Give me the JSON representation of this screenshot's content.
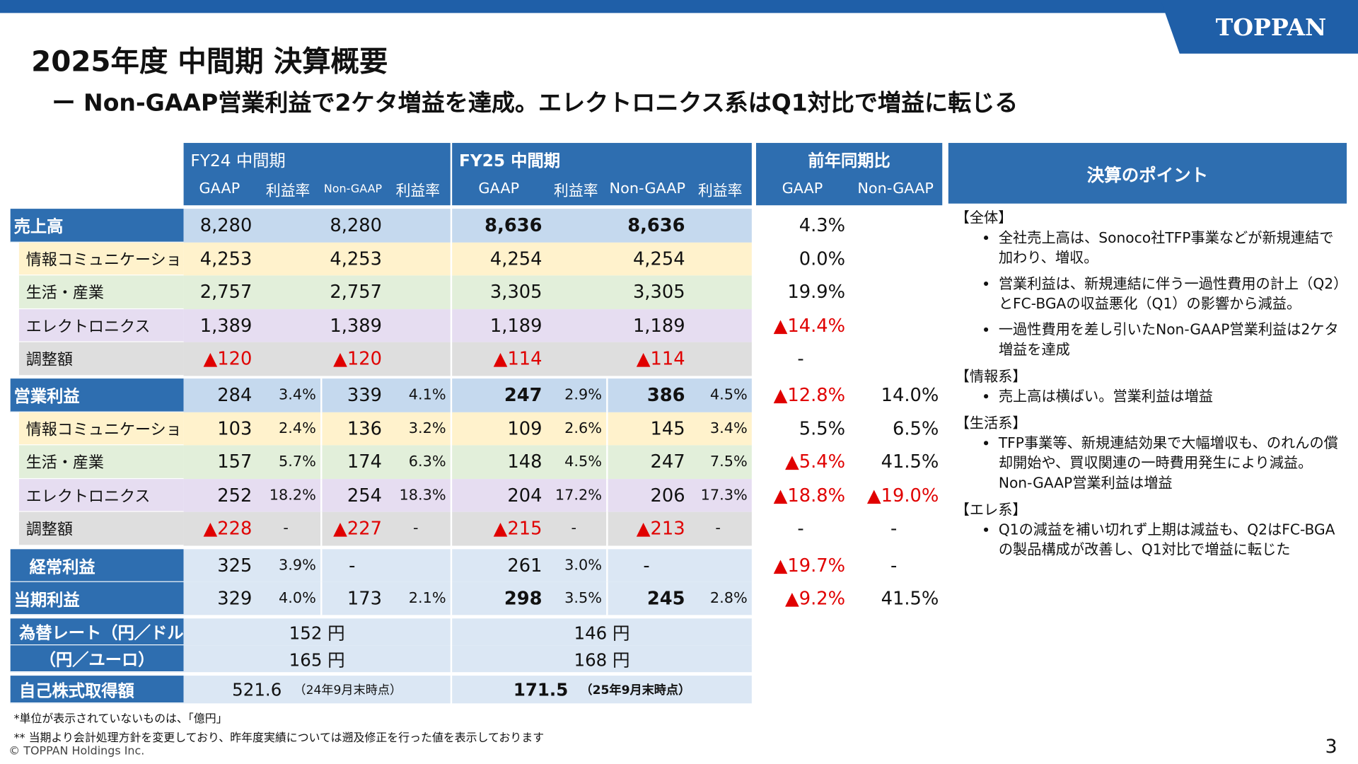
{
  "header": {
    "title": "2025年度 中間期 決算概要",
    "subtitle": "ー Non-GAAP営業利益で2ケタ増益を達成。エレクトロニクス系はQ1対比で増益に転じる",
    "logo": "TOPPAN"
  },
  "table": {
    "groups": [
      "FY24 中間期",
      "FY25 中間期",
      "前年同期比"
    ],
    "subheaders": [
      "GAAP",
      "利益率",
      "Non-GAAP",
      "利益率",
      "GAAP",
      "利益率",
      "Non-GAAP",
      "利益率",
      "GAAP",
      "Non-GAAP"
    ],
    "rows": [
      {
        "label": "売上高",
        "cells": [
          "8,280",
          null,
          "8,280",
          null,
          "8,636",
          null,
          "8,636",
          null,
          "4.3%",
          null
        ]
      },
      {
        "label": "情報コミュニケーション",
        "cells": [
          "4,253",
          null,
          "4,253",
          null,
          "4,254",
          null,
          "4,254",
          null,
          "0.0%",
          null
        ]
      },
      {
        "label": "生活・産業",
        "cells": [
          "2,757",
          null,
          "2,757",
          null,
          "3,305",
          null,
          "3,305",
          null,
          "19.9%",
          null
        ]
      },
      {
        "label": "エレクトロニクス",
        "cells": [
          "1,389",
          null,
          "1,389",
          null,
          "1,189",
          null,
          "1,189",
          null,
          "▲14.4%",
          null
        ]
      },
      {
        "label": "調整額",
        "cells": [
          "▲120",
          null,
          "▲120",
          null,
          "▲114",
          null,
          "▲114",
          null,
          "-",
          null
        ]
      },
      {
        "label": "営業利益",
        "cells": [
          "284",
          "3.4%",
          "339",
          "4.1%",
          "247",
          "2.9%",
          "386",
          "4.5%",
          "▲12.8%",
          "14.0%"
        ]
      },
      {
        "label": "情報コミュニケーション",
        "cells": [
          "103",
          "2.4%",
          "136",
          "3.2%",
          "109",
          "2.6%",
          "145",
          "3.4%",
          "5.5%",
          "6.5%"
        ]
      },
      {
        "label": "生活・産業",
        "cells": [
          "157",
          "5.7%",
          "174",
          "6.3%",
          "148",
          "4.5%",
          "247",
          "7.5%",
          "▲5.4%",
          "41.5%"
        ]
      },
      {
        "label": "エレクトロニクス",
        "cells": [
          "252",
          "18.2%",
          "254",
          "18.3%",
          "204",
          "17.2%",
          "206",
          "17.3%",
          "▲18.8%",
          "▲19.0%"
        ]
      },
      {
        "label": "調整額",
        "cells": [
          "▲228",
          "-",
          "▲227",
          "-",
          "▲215",
          "-",
          "▲213",
          "-",
          "-",
          "-"
        ]
      },
      {
        "label": "経常利益",
        "cells": [
          "325",
          "3.9%",
          "-",
          null,
          "261",
          "3.0%",
          "-",
          null,
          "▲19.7%",
          "-"
        ]
      },
      {
        "label": "当期利益",
        "cells": [
          "329",
          "4.0%",
          "173",
          "2.1%",
          "298",
          "3.5%",
          "245",
          "2.8%",
          "▲9.2%",
          "41.5%"
        ]
      },
      {
        "label": "為替レート（円／ドル）",
        "cells": [
          "152 円",
          "146 円"
        ]
      },
      {
        "label": "（円／ユーロ）",
        "cells": [
          "165 円",
          "168 円"
        ]
      },
      {
        "label": "自己株式取得額",
        "cells": [
          {
            "value": "521.6",
            "note": "（24年9月末時点）"
          },
          {
            "value": "171.5",
            "note": "（25年9月末時点）"
          }
        ]
      }
    ]
  },
  "points": {
    "title": "決算のポイント",
    "sections": [
      {
        "heading": "【全体】",
        "bullets": [
          "全社売上高は、Sonoco社TFP事業などが新規連結で加わり、増収。",
          "営業利益は、新規連結に伴う一過性費用の計上（Q2）とFC-BGAの収益悪化（Q1）の影響から減益。",
          "一過性費用を差し引いたNon-GAAP営業利益は2ケタ増益を達成"
        ]
      },
      {
        "heading": "【情報系】",
        "bullets": [
          "売上高は横ばい。営業利益は増益"
        ]
      },
      {
        "heading": "【生活系】",
        "bullets": [
          "TFP事業等、新規連結効果で大幅増収も、のれんの償却開始や、買収関連の一時費用発生により減益。Non-GAAP営業利益は増益"
        ]
      },
      {
        "heading": "【エレ系】",
        "bullets": [
          "Q1の減益を補い切れず上期は減益も、Q2はFC-BGAの製品構成が改善し、Q1対比で増益に転じた"
        ]
      }
    ]
  },
  "footer": {
    "notes": [
      "*単位が表示されていないものは、「億円」",
      "** 当期より会計処理方針を変更しており、昨年度実績については遡及修正を行った値を表示しております"
    ],
    "copyright": "© TOPPAN Holdings Inc.",
    "page": "3"
  }
}
